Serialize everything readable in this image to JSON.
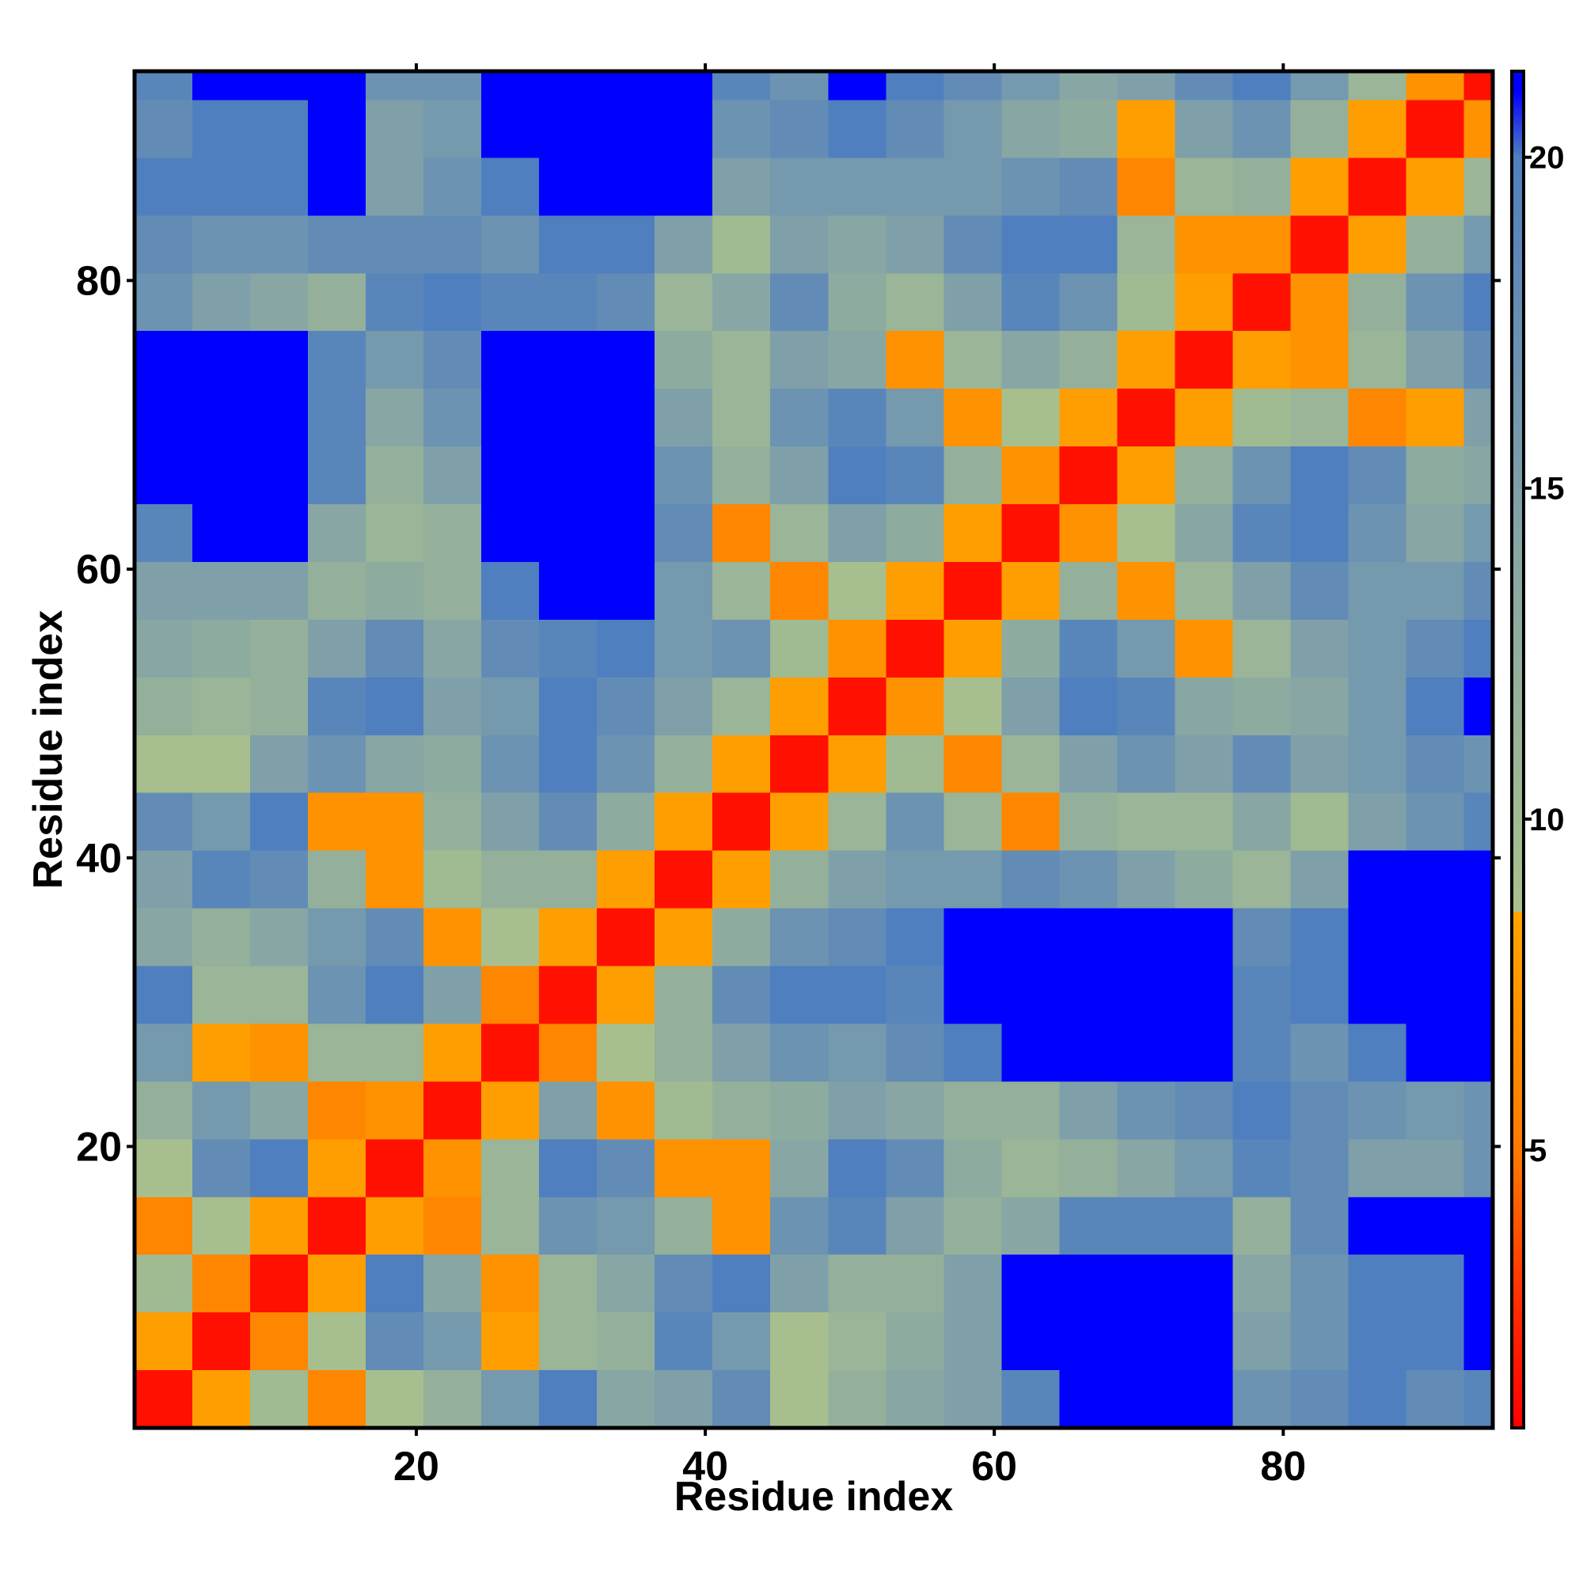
{
  "chart_data": {
    "type": "heatmap",
    "xlabel": "Residue index",
    "ylabel": "Residue index",
    "xlim": [
      0.5,
      94.5
    ],
    "ylim": [
      0.5,
      94.5
    ],
    "xticks": [
      20,
      40,
      60,
      80
    ],
    "yticks": [
      20,
      40,
      60,
      80
    ],
    "xbins": [
      0.5,
      4.5,
      8.5,
      12.5,
      16.5,
      20.5,
      24.5,
      28.5,
      32.5,
      36.5,
      40.5,
      44.5,
      48.5,
      52.5,
      56.5,
      60.5,
      64.5,
      68.5,
      72.5,
      76.5,
      80.5,
      84.5,
      88.5,
      92.5,
      94.5
    ],
    "ybins": [
      0.5,
      4.5,
      8.5,
      12.5,
      16.5,
      20.5,
      24.5,
      28.5,
      32.5,
      36.5,
      40.5,
      44.5,
      48.5,
      52.5,
      56.5,
      60.5,
      64.5,
      68.5,
      72.5,
      76.5,
      80.5,
      84.5,
      88.5,
      92.5,
      94.5
    ],
    "z": [
      [
        1.5,
        8,
        10,
        6,
        9,
        12,
        16,
        20,
        14,
        15,
        18,
        9,
        12,
        14,
        15,
        19,
        21.5,
        21.5,
        21.5,
        17,
        18,
        20,
        18,
        19
      ],
      [
        8,
        1.5,
        6,
        9,
        18,
        16,
        8,
        11,
        12,
        19,
        16,
        9,
        11,
        13,
        15,
        21.5,
        21.5,
        21.5,
        21.5,
        15,
        17,
        20,
        20,
        21
      ],
      [
        10,
        6,
        1.5,
        8,
        20,
        14,
        7,
        11,
        14,
        18,
        20,
        15,
        12,
        12,
        15,
        21.5,
        21.5,
        21.5,
        21.5,
        14,
        17,
        20,
        20,
        21
      ],
      [
        6,
        9,
        8,
        1.5,
        8,
        6,
        11,
        17,
        16,
        12,
        7,
        17,
        19,
        15,
        12,
        14,
        19,
        19,
        19,
        12,
        18,
        21.5,
        21.5,
        21.5
      ],
      [
        9,
        18,
        20,
        8,
        1.5,
        7,
        11,
        20,
        18,
        7,
        7,
        14,
        20,
        18,
        13,
        11,
        12,
        14,
        16,
        19,
        18,
        15,
        15,
        17
      ],
      [
        12,
        16,
        14,
        6,
        7,
        1.5,
        8,
        15,
        7,
        10,
        12,
        13,
        15,
        14,
        12,
        12,
        15,
        17,
        18,
        20,
        18,
        17,
        16,
        17
      ],
      [
        16,
        8,
        7,
        11,
        11,
        8,
        1.5,
        6,
        9,
        12,
        15,
        17,
        16,
        18,
        20,
        21.5,
        21.5,
        21.5,
        21.5,
        19,
        17,
        20,
        21.5,
        21.5
      ],
      [
        20,
        11,
        11,
        17,
        20,
        15,
        6,
        1.5,
        8,
        12,
        18,
        20,
        20,
        19,
        21.5,
        21.5,
        21.5,
        21.5,
        21.5,
        19,
        20,
        21.5,
        21.5,
        21.5
      ],
      [
        14,
        12,
        14,
        16,
        18,
        7,
        9,
        8,
        1.5,
        8,
        13,
        17,
        18,
        20,
        21.5,
        21.5,
        21.5,
        21.5,
        21.5,
        18,
        20,
        21.5,
        21.5,
        21.5
      ],
      [
        15,
        19,
        18,
        12,
        7,
        10,
        12,
        12,
        8,
        1.5,
        8,
        12,
        15,
        16,
        16,
        18,
        17,
        15,
        13,
        11,
        15,
        21.5,
        21.5,
        21.5
      ],
      [
        18,
        16,
        20,
        7,
        7,
        12,
        15,
        18,
        13,
        8,
        1.5,
        8,
        11,
        17,
        11,
        6,
        12,
        11,
        11,
        14,
        10,
        15,
        17,
        19
      ],
      [
        9,
        9,
        15,
        17,
        14,
        13,
        17,
        20,
        17,
        12,
        8,
        1.5,
        8,
        10,
        6,
        11,
        15,
        17,
        15,
        18,
        15,
        16,
        18,
        17
      ],
      [
        12,
        11,
        12,
        19,
        20,
        15,
        16,
        20,
        18,
        15,
        11,
        8,
        1.5,
        7,
        9,
        15,
        20,
        19,
        14,
        13,
        14,
        16,
        20,
        21
      ],
      [
        14,
        13,
        12,
        15,
        18,
        14,
        18,
        19,
        20,
        16,
        17,
        10,
        7,
        1.5,
        8,
        13,
        19,
        16,
        7,
        11,
        15,
        16,
        18,
        20
      ],
      [
        15,
        15,
        15,
        12,
        13,
        12,
        20,
        21.5,
        21.5,
        16,
        11,
        6,
        9,
        8,
        1.5,
        8,
        12,
        7,
        11,
        15,
        18,
        16,
        16,
        18
      ],
      [
        19,
        21.5,
        21.5,
        14,
        11,
        12,
        21.5,
        21.5,
        21.5,
        18,
        6,
        11,
        15,
        13,
        8,
        1.5,
        7,
        9,
        14,
        19,
        20,
        17,
        14,
        16
      ],
      [
        21.5,
        21.5,
        21.5,
        19,
        12,
        15,
        21.5,
        21.5,
        21.5,
        17,
        12,
        15,
        20,
        19,
        12,
        7,
        1.5,
        8,
        12,
        17,
        20,
        18,
        13,
        14
      ],
      [
        21.5,
        21.5,
        21.5,
        19,
        14,
        17,
        21.5,
        21.5,
        21.5,
        15,
        11,
        17,
        19,
        16,
        7,
        9,
        8,
        1.5,
        8,
        10,
        11,
        6,
        8,
        15
      ],
      [
        21.5,
        21.5,
        21.5,
        19,
        16,
        18,
        21.5,
        21.5,
        21.5,
        13,
        11,
        15,
        14,
        7,
        11,
        14,
        12,
        8,
        1.5,
        8,
        7,
        11,
        15,
        18
      ],
      [
        17,
        15,
        14,
        12,
        19,
        20,
        19,
        19,
        18,
        11,
        14,
        18,
        13,
        11,
        15,
        19,
        17,
        10,
        8,
        1.5,
        7,
        12,
        17,
        20
      ],
      [
        18,
        17,
        17,
        18,
        18,
        18,
        17,
        20,
        20,
        15,
        10,
        15,
        14,
        15,
        18,
        20,
        20,
        11,
        7,
        7,
        1.5,
        8,
        12,
        16
      ],
      [
        20,
        20,
        20,
        21.5,
        15,
        17,
        20,
        21.5,
        21.5,
        21.5,
        15,
        16,
        16,
        16,
        16,
        17,
        18,
        6,
        11,
        12,
        8,
        1.5,
        8,
        11
      ],
      [
        18,
        20,
        20,
        21.5,
        15,
        16,
        21.5,
        21.5,
        21.5,
        21.5,
        17,
        18,
        20,
        18,
        16,
        14,
        13,
        8,
        15,
        17,
        12,
        8,
        1.5,
        7
      ],
      [
        19,
        21,
        21,
        21.5,
        17,
        17,
        21.5,
        21.5,
        21.5,
        21.5,
        19,
        17,
        21,
        20,
        18,
        16,
        14,
        15,
        18,
        20,
        16,
        11,
        7,
        1.5
      ]
    ],
    "colorbar": {
      "lim": [
        0.8,
        21.3
      ],
      "ticks": [
        5,
        10,
        15,
        20
      ]
    },
    "colorscale": [
      {
        "value": 0.8,
        "color": "#ff0000"
      },
      {
        "value": 2.6,
        "color": "#ff2a00"
      },
      {
        "value": 5,
        "color": "#ff7a00"
      },
      {
        "value": 8.6,
        "color": "#ffa500"
      },
      {
        "value": 8.6,
        "color": "#a9c18c"
      },
      {
        "value": 14,
        "color": "#88a6a4"
      },
      {
        "value": 20,
        "color": "#4f7fbe"
      },
      {
        "value": 21,
        "color": "#0000ff"
      }
    ]
  }
}
